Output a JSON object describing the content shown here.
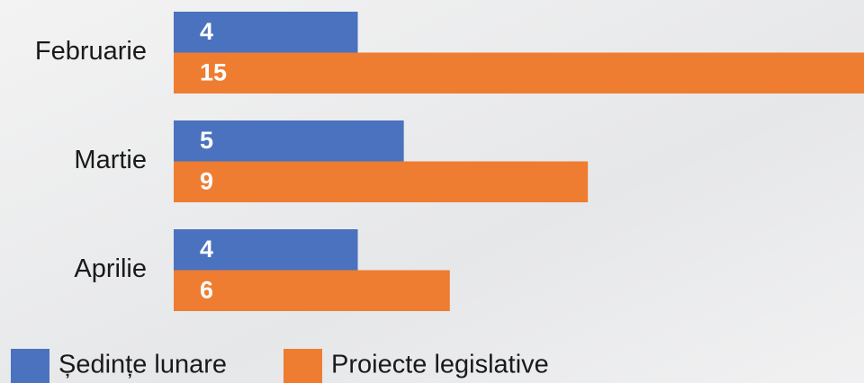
{
  "chart_data": {
    "type": "bar",
    "orientation": "horizontal",
    "categories": [
      "Februarie",
      "Martie",
      "Aprilie"
    ],
    "series": [
      {
        "name": "Ședințe lunare",
        "color": "#4a72bf",
        "values": [
          4,
          5,
          4
        ]
      },
      {
        "name": "Proiecte legislative",
        "color": "#ee7d31",
        "values": [
          15,
          9,
          6
        ]
      }
    ]
  }
}
